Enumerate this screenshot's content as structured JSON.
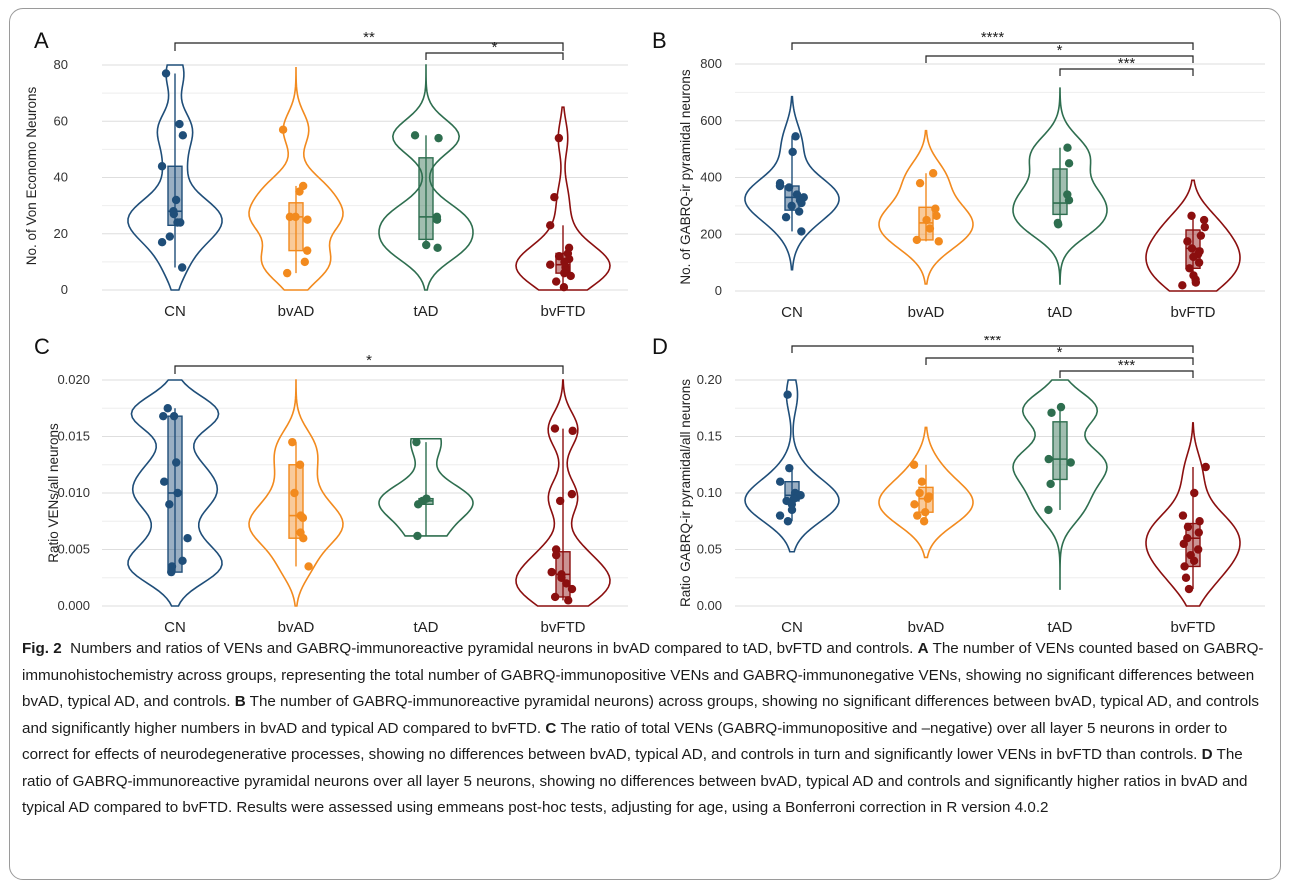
{
  "caption": {
    "fig_label": "Fig. 2",
    "intro": "Numbers and ratios of VENs and GABRQ-immunoreactive pyramidal neurons in bvAD compared to tAD, bvFTD and controls.",
    "a_label": "A",
    "a_text": "The number of VENs counted based on GABRQ-immunohistochemistry across groups, representing the total number of GABRQ-immunopositive VENs and GABRQ-immunonegative VENs, showing no significant differences between bvAD, typical AD, and controls.",
    "b_label": "B",
    "b_text": "The number of GABRQ-immunoreactive pyramidal neurons) across groups, showing no significant differences between bvAD, typical AD, and controls and significantly higher numbers in bvAD and typical AD compared to bvFTD.",
    "c_label": "C",
    "c_text": "The ratio of total VENs (GABRQ-immunopositive and –negative) over all layer 5 neurons in order to correct for effects of neurodegenerative processes, showing no differences between bvAD, typical AD, and controls in turn and significantly lower VENs in bvFTD than controls.",
    "d_label": "D",
    "d_text": "The ratio of GABRQ-immunoreactive pyramidal neurons over all layer 5 neurons, showing no differences between bvAD, typical AD and controls and significantly higher ratios in bvAD and typical AD compared to bvFTD. Results were assessed using emmeans post-hoc tests, adjusting for age, using a Bonferroni correction in R version 4.0.2"
  },
  "group_colors": {
    "CN": "#1f4e79",
    "bvAD": "#f28a1e",
    "tAD": "#2e6e4f",
    "bvFTD": "#8b0f0f"
  },
  "chart_data": [
    {
      "panel": "A",
      "type": "violin",
      "categories": [
        "CN",
        "bvAD",
        "tAD",
        "bvFTD"
      ],
      "ylabel": "No. of Von Economo Neurons",
      "xlabel": "",
      "ylim": [
        0,
        80
      ],
      "yticks": [
        0,
        20,
        40,
        60,
        80
      ],
      "tick_labels": [
        "0",
        "20",
        "40",
        "60",
        "80"
      ],
      "grid": "horizontal",
      "series": [
        {
          "group": "CN",
          "values": [
            77,
            59,
            55,
            44,
            32,
            28,
            27,
            24,
            24,
            19,
            17,
            8
          ],
          "box": [
            23,
            28,
            44
          ],
          "whiskers": [
            8,
            77
          ],
          "violin": [
            0,
            80
          ]
        },
        {
          "group": "bvAD",
          "values": [
            57,
            37,
            35,
            26,
            26,
            25,
            14,
            10,
            6
          ],
          "box": [
            14,
            26,
            31
          ],
          "whiskers": [
            6,
            37
          ],
          "violin": [
            0,
            79
          ]
        },
        {
          "group": "tAD",
          "values": [
            55,
            54,
            26,
            25,
            16,
            15
          ],
          "box": [
            18,
            26,
            47
          ],
          "whiskers": [
            15,
            55
          ],
          "violin": [
            0,
            80
          ]
        },
        {
          "group": "bvFTD",
          "values": [
            54,
            33,
            23,
            15,
            13,
            12,
            11,
            10,
            9,
            8,
            7,
            6,
            5,
            3,
            1
          ],
          "box": [
            6,
            9,
            13
          ],
          "whiskers": [
            1,
            23
          ],
          "violin": [
            0,
            65
          ]
        }
      ],
      "significance": [
        {
          "from": "CN",
          "to": "bvFTD",
          "label": "**"
        },
        {
          "from": "tAD",
          "to": "bvFTD",
          "label": "*"
        }
      ]
    },
    {
      "panel": "B",
      "type": "violin",
      "categories": [
        "CN",
        "bvAD",
        "tAD",
        "bvFTD"
      ],
      "ylabel": "No. of GABRQ-ir pyramidal neurons",
      "xlabel": "",
      "ylim": [
        0,
        800
      ],
      "yticks": [
        0,
        200,
        400,
        600,
        800
      ],
      "tick_labels": [
        "0",
        "200",
        "400",
        "600",
        "800"
      ],
      "grid": "horizontal",
      "series": [
        {
          "group": "CN",
          "values": [
            545,
            490,
            380,
            370,
            365,
            340,
            330,
            320,
            310,
            300,
            280,
            260,
            210
          ],
          "box": [
            285,
            330,
            370
          ],
          "whiskers": [
            210,
            545
          ],
          "violin": [
            75,
            685
          ]
        },
        {
          "group": "bvAD",
          "values": [
            415,
            380,
            290,
            265,
            250,
            220,
            180,
            175
          ],
          "box": [
            180,
            240,
            295
          ],
          "whiskers": [
            175,
            415
          ],
          "violin": [
            25,
            565
          ]
        },
        {
          "group": "tAD",
          "values": [
            505,
            450,
            340,
            320,
            240,
            235
          ],
          "box": [
            270,
            310,
            430
          ],
          "whiskers": [
            235,
            505
          ],
          "violin": [
            25,
            715
          ]
        },
        {
          "group": "bvFTD",
          "values": [
            265,
            250,
            225,
            195,
            175,
            150,
            140,
            130,
            120,
            100,
            80,
            55,
            40,
            30,
            20
          ],
          "box": [
            80,
            150,
            215
          ],
          "whiskers": [
            20,
            265
          ],
          "violin": [
            0,
            390
          ]
        }
      ],
      "significance": [
        {
          "from": "CN",
          "to": "bvFTD",
          "label": "****"
        },
        {
          "from": "bvAD",
          "to": "bvFTD",
          "label": "*"
        },
        {
          "from": "tAD",
          "to": "bvFTD",
          "label": "***"
        }
      ]
    },
    {
      "panel": "C",
      "type": "violin",
      "categories": [
        "CN",
        "bvAD",
        "tAD",
        "bvFTD"
      ],
      "ylabel": "Ratio VENs/all neurons",
      "xlabel": "",
      "ylim": [
        0,
        0.02
      ],
      "yticks": [
        0,
        0.005,
        0.01,
        0.015,
        0.02
      ],
      "tick_labels": [
        "0.000",
        "0.005",
        "0.010",
        "0.015",
        "0.020"
      ],
      "grid": "horizontal",
      "series": [
        {
          "group": "CN",
          "values": [
            0.0175,
            0.0168,
            0.0168,
            0.0127,
            0.011,
            0.01,
            0.009,
            0.006,
            0.004,
            0.0035,
            0.003
          ],
          "box": [
            0.003,
            0.01,
            0.0168
          ],
          "whiskers": [
            0.003,
            0.0175
          ],
          "violin": [
            0,
            0.02
          ]
        },
        {
          "group": "bvAD",
          "values": [
            0.0145,
            0.0125,
            0.01,
            0.008,
            0.0078,
            0.0065,
            0.006,
            0.0035
          ],
          "box": [
            0.006,
            0.008,
            0.0125
          ],
          "whiskers": [
            0.0035,
            0.0145
          ],
          "violin": [
            0,
            0.02
          ]
        },
        {
          "group": "tAD",
          "values": [
            0.0145,
            0.0095,
            0.0093,
            0.009,
            0.0062
          ],
          "box": [
            0.009,
            0.0093,
            0.0095
          ],
          "whiskers": [
            0.0062,
            0.0145
          ],
          "violin": [
            0.0062,
            0.0148
          ]
        },
        {
          "group": "bvFTD",
          "values": [
            0.0157,
            0.0155,
            0.0099,
            0.0093,
            0.005,
            0.0045,
            0.003,
            0.0028,
            0.0025,
            0.002,
            0.0015,
            0.0008,
            0.0005
          ],
          "box": [
            0.0008,
            0.0028,
            0.0048
          ],
          "whiskers": [
            0.0005,
            0.0157
          ],
          "violin": [
            0,
            0.02
          ]
        }
      ],
      "significance": [
        {
          "from": "CN",
          "to": "bvFTD",
          "label": "*"
        }
      ]
    },
    {
      "panel": "D",
      "type": "violin",
      "categories": [
        "CN",
        "bvAD",
        "tAD",
        "bvFTD"
      ],
      "ylabel": "Ratio GABRQ-ir pyramidal/all neurons",
      "xlabel": "",
      "ylim": [
        0,
        0.2
      ],
      "yticks": [
        0,
        0.05,
        0.1,
        0.15,
        0.2
      ],
      "tick_labels": [
        "0.00",
        "0.05",
        "0.10",
        "0.15",
        "0.20"
      ],
      "grid": "horizontal",
      "series": [
        {
          "group": "CN",
          "values": [
            0.187,
            0.122,
            0.11,
            0.1,
            0.098,
            0.097,
            0.095,
            0.093,
            0.09,
            0.085,
            0.08,
            0.075
          ],
          "box": [
            0.093,
            0.098,
            0.11
          ],
          "whiskers": [
            0.075,
            0.122
          ],
          "violin": [
            0.048,
            0.2
          ]
        },
        {
          "group": "bvAD",
          "values": [
            0.125,
            0.11,
            0.1,
            0.097,
            0.095,
            0.09,
            0.083,
            0.08,
            0.075
          ],
          "box": [
            0.083,
            0.095,
            0.105
          ],
          "whiskers": [
            0.075,
            0.125
          ],
          "violin": [
            0.043,
            0.158
          ]
        },
        {
          "group": "tAD",
          "values": [
            0.176,
            0.171,
            0.13,
            0.127,
            0.108,
            0.085
          ],
          "box": [
            0.112,
            0.13,
            0.163
          ],
          "whiskers": [
            0.085,
            0.176
          ],
          "violin": [
            0.015,
            0.2
          ]
        },
        {
          "group": "bvFTD",
          "values": [
            0.123,
            0.1,
            0.08,
            0.075,
            0.07,
            0.065,
            0.06,
            0.055,
            0.05,
            0.045,
            0.04,
            0.035,
            0.025,
            0.015
          ],
          "box": [
            0.035,
            0.06,
            0.073
          ],
          "whiskers": [
            0.015,
            0.123
          ],
          "violin": [
            0,
            0.162
          ]
        }
      ],
      "significance": [
        {
          "from": "CN",
          "to": "bvFTD",
          "label": "***"
        },
        {
          "from": "bvAD",
          "to": "bvFTD",
          "label": "*"
        },
        {
          "from": "tAD",
          "to": "bvFTD",
          "label": "***"
        }
      ]
    }
  ]
}
